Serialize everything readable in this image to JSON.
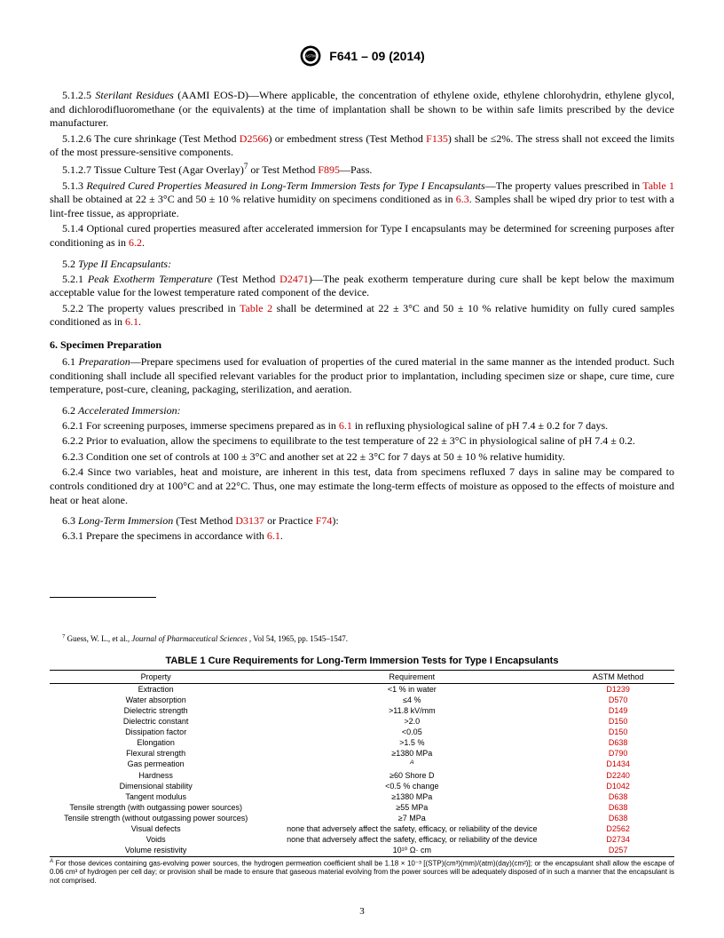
{
  "header": {
    "doc_id": "F641 – 09 (2014)"
  },
  "body": {
    "p5125_num": "5.1.2.5",
    "p5125_head": "Sterilant Residues",
    "p5125_paren": " (AAMI EOS-D)—",
    "p5125_text": "Where applicable, the concentration of ethylene oxide, ethylene chlorohydrin, ethylene glycol, and dichlorodifluoromethane (or the equivalents) at the time of implantation shall be shown to be within safe limits prescribed by the device manufacturer.",
    "p5126_num": "5.1.2.6",
    "p5126_a": "  The cure shrinkage (Test Method ",
    "p5126_link1": "D2566",
    "p5126_b": ") or embedment stress (Test Method ",
    "p5126_link2": "F135",
    "p5126_c": ") shall be ≤2%. The stress shall not exceed the limits of the most pressure-sensitive components.",
    "p5127_num": "5.1.2.7",
    "p5127_a": "  Tissue Culture Test (Agar Overlay)",
    "p5127_sup": "7",
    "p5127_b": " or Test Method ",
    "p5127_link": "F895",
    "p5127_c": "—Pass.",
    "p513_num": "5.1.3",
    "p513_head": "Required Cured Properties Measured in Long-Term Immersion Tests for Type I Encapsulants",
    "p513_a": "—The property values prescribed in ",
    "p513_link1": "Table 1",
    "p513_b": " shall be obtained at 22 ± 3°C and 50 ± 10 % relative humidity on specimens conditioned as in ",
    "p513_link2": "6.3",
    "p513_c": ". Samples shall be wiped dry prior to test with a lint-free tissue, as appropriate.",
    "p514_num": "5.1.4",
    "p514_a": "  Optional cured properties measured after accelerated immersion for Type I encapsulants may be determined for screening purposes after conditioning as in ",
    "p514_link": "6.2",
    "p514_b": ".",
    "p52_num": "5.2",
    "p52_head": "Type II Encapsulants:",
    "p521_num": "5.2.1",
    "p521_head": "Peak Exotherm Temperature",
    "p521_a": " (Test Method ",
    "p521_link": "D2471",
    "p521_b": ")—The peak exotherm temperature during cure shall be kept below the maximum acceptable value for the lowest temperature rated component of the device.",
    "p522_num": "5.2.2",
    "p522_a": "  The property values prescribed in ",
    "p522_link1": "Table 2",
    "p522_b": " shall be determined at 22 ± 3°C and 50 ± 10 % relative humidity on fully cured samples conditioned as in ",
    "p522_link2": "6.1",
    "p522_c": ".",
    "s6": "6.  Specimen Preparation",
    "p61_num": "6.1",
    "p61_head": "Preparation",
    "p61_a": "—Prepare specimens used for evaluation of properties of the cured material in the same manner as the intended product. Such conditioning shall include all specified relevant variables for the product prior to implantation, including specimen size or shape, cure time, cure temperature, post-cure, cleaning, packaging, sterilization, and aeration.",
    "p62_num": "6.2",
    "p62_head": "Accelerated Immersion:",
    "p621_num": "6.2.1",
    "p621_a": "  For screening purposes, immerse specimens prepared as in ",
    "p621_link": "6.1",
    "p621_b": " in refluxing physiological saline of pH 7.4 ± 0.2 for 7 days.",
    "p622_num": "6.2.2",
    "p622_a": "  Prior to evaluation, allow the specimens to equilibrate to the test temperature of 22 ± 3°C in physiological saline of pH 7.4 ± 0.2.",
    "p623_num": "6.2.3",
    "p623_a": "  Condition one set of controls at 100 ± 3°C and another set at 22 ± 3°C for 7 days at 50 ± 10 % relative humidity.",
    "p624_num": "6.2.4",
    "p624_a": "  Since two variables, heat and moisture, are inherent in this test, data from specimens refluxed 7 days in saline may be compared to controls conditioned dry at 100°C and at 22°C. Thus, one may estimate the long-term effects of moisture as opposed to the effects of moisture and heat or heat alone.",
    "p63_num": "6.3",
    "p63_head": "Long-Term Immersion",
    "p63_a": " (Test Method ",
    "p63_link1": "D3137",
    "p63_b": " or Practice ",
    "p63_link2": "F74",
    "p63_c": "):",
    "p631_num": "6.3.1",
    "p631_a": "  Prepare the specimens in accordance with ",
    "p631_link": "6.1",
    "p631_b": "."
  },
  "footnote": {
    "sup": "7",
    "a": " Guess, W. L., et al., ",
    "i": "Journal of Pharmaceutical Sciences",
    "b": " , Vol 54, 1965, pp. 1545–1547."
  },
  "table1": {
    "title": "TABLE 1 Cure Requirements for Long-Term Immersion Tests for Type I Encapsulants",
    "col_prop": "Property",
    "col_req": "Requirement",
    "col_method": "ASTM Method",
    "rows": [
      {
        "p": "Extraction",
        "r": "<1 % in water",
        "m": "D1239"
      },
      {
        "p": "Water absorption",
        "r": "≤4 %",
        "m": "D570"
      },
      {
        "p": "Dielectric strength",
        "r": ">11.8 kV/mm",
        "m": "D149"
      },
      {
        "p": "Dielectric constant",
        "r": ">2.0",
        "m": "D150"
      },
      {
        "p": "Dissipation factor",
        "r": "<0.05",
        "m": "D150"
      },
      {
        "p": "Elongation",
        "r": ">1.5 %",
        "m": "D638"
      },
      {
        "p": "Flexural strength",
        "r": "≥1380 MPa",
        "m": "D790"
      },
      {
        "p": "Gas permeation",
        "r": "A",
        "sup": true,
        "m": "D1434"
      },
      {
        "p": "Hardness",
        "r": "≥60 Shore D",
        "m": "D2240"
      },
      {
        "p": "Dimensional stability",
        "r": "<0.5 % change",
        "m": "D1042"
      },
      {
        "p": "Tangent modulus",
        "r": "≥1380 MPa",
        "m": "D638"
      },
      {
        "p": "Tensile strength (with outgassing power sources)",
        "r": "≥55 MPa",
        "m": "D638"
      },
      {
        "p": "Tensile strength (without outgassing power sources)",
        "r": "≥7 MPa",
        "m": "D638"
      },
      {
        "p": "Visual defects",
        "r": "none that adversely affect the safety, efficacy, or reliability of the device",
        "m": "D2562"
      },
      {
        "p": "Voids",
        "r": "none that adversely affect the safety, efficacy, or reliability of the device",
        "m": "D2734"
      },
      {
        "p": "Volume resistivity",
        "r": "10¹⁰ Ω· cm",
        "m": "D257"
      }
    ],
    "footnote_sup": "A",
    "footnote_text": " For those devices containing gas-evolving power sources, the hydrogen permeation coefficient shall be 1.18 × 10⁻³ [(STP)(cm³)(mm)/(atm)(day)(cm²)]; or the encapsulant shall allow the escape of 0.06 cm³ of hydrogen per cell day; or provision shall be made to ensure that gaseous material evolving from the power sources will be adequately disposed of in such a manner that the encapsulant is not comprised."
  },
  "page_num": "3"
}
